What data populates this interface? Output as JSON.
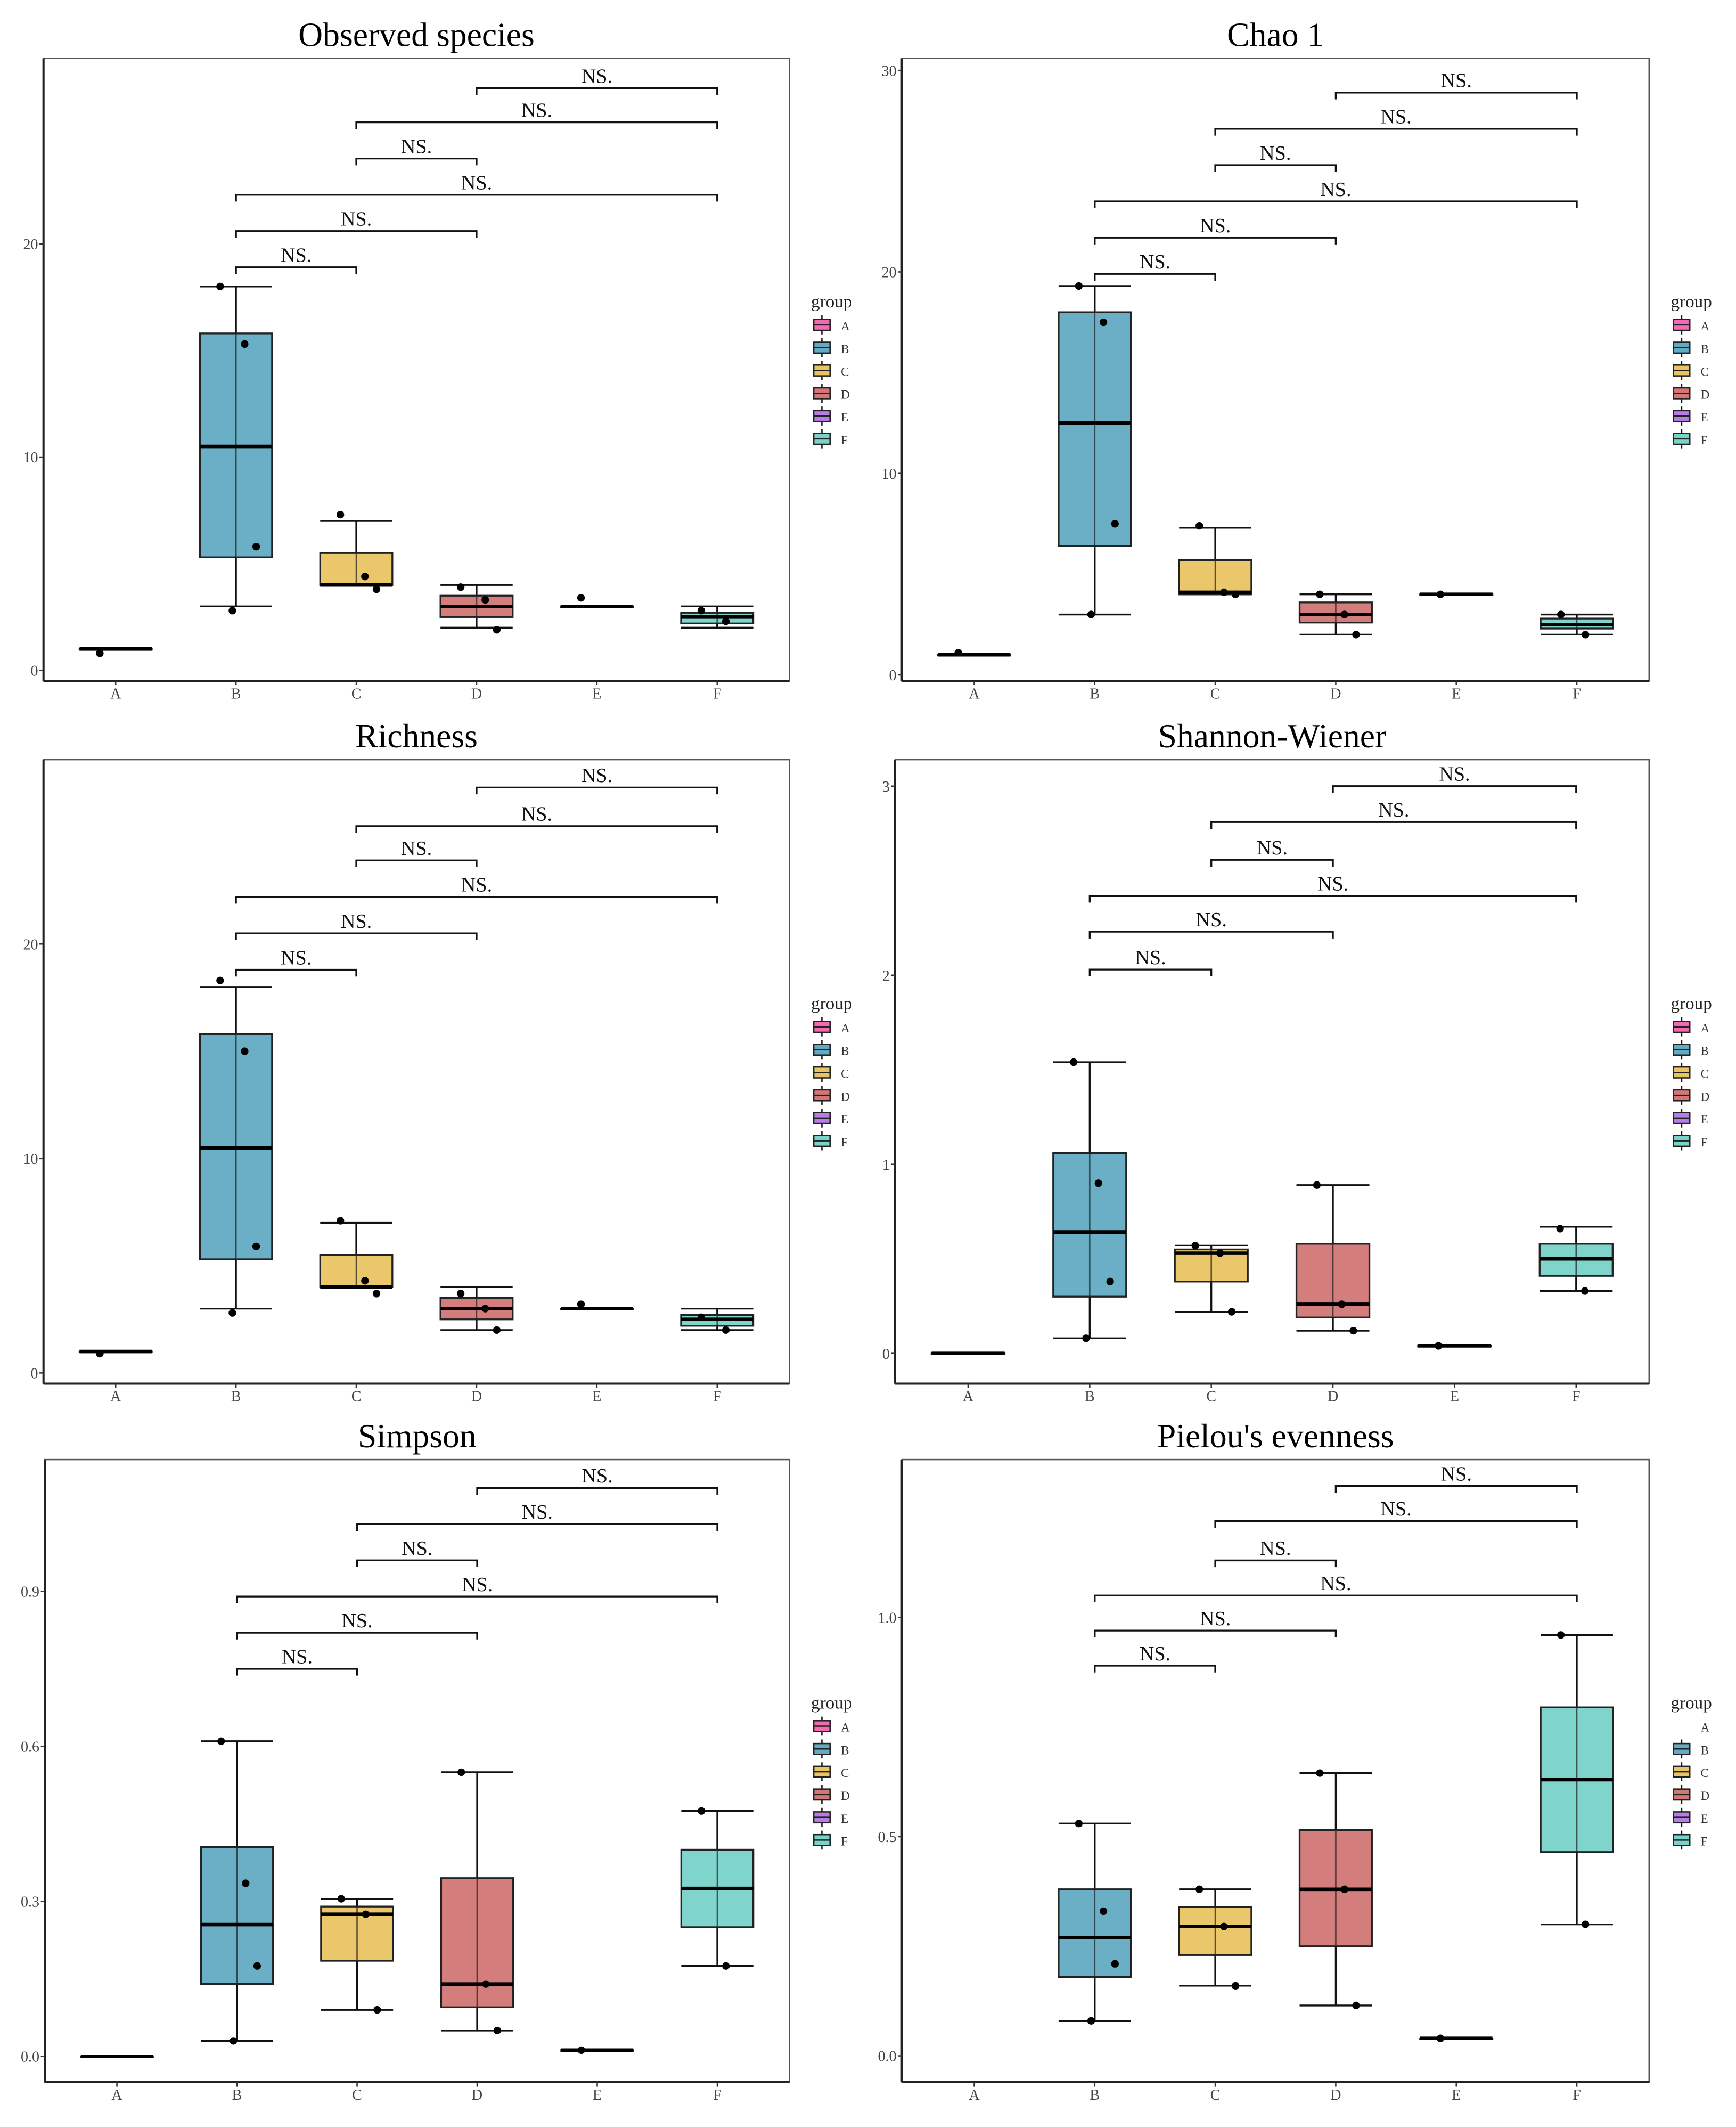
{
  "chart_data": [
    {
      "type": "box",
      "title": "Observed species",
      "ylim": [
        -0.5,
        28.7
      ],
      "yticks": [
        "0",
        "10",
        "20"
      ],
      "ytick_values": [
        0,
        10,
        20
      ],
      "categories": [
        "A",
        "B",
        "C",
        "D",
        "E",
        "F"
      ],
      "groups": [
        {
          "name": "A",
          "lo": 1,
          "q1": 1,
          "med": 1,
          "q3": 1,
          "hi": 1,
          "points": [
            0.8
          ]
        },
        {
          "name": "B",
          "lo": 3,
          "q1": 5.3,
          "med": 10.5,
          "q3": 15.8,
          "hi": 18,
          "points": [
            18,
            15.3,
            5.8,
            2.8
          ]
        },
        {
          "name": "C",
          "lo": 4,
          "q1": 4,
          "med": 4,
          "q3": 5.5,
          "hi": 7,
          "points": [
            7.3,
            4.4,
            3.8
          ]
        },
        {
          "name": "D",
          "lo": 2,
          "q1": 2.5,
          "med": 3,
          "q3": 3.5,
          "hi": 4,
          "points": [
            3.9,
            3.3,
            1.9
          ]
        },
        {
          "name": "E",
          "lo": 3,
          "q1": 3,
          "med": 3,
          "q3": 3,
          "hi": 3,
          "points": [
            3.4
          ]
        },
        {
          "name": "F",
          "lo": 2,
          "q1": 2.2,
          "med": 2.5,
          "q3": 2.7,
          "hi": 3,
          "points": [
            2.8,
            2.3
          ]
        }
      ],
      "brackets": [
        {
          "from": "D",
          "to": "F",
          "y": 27.3,
          "label": "NS."
        },
        {
          "from": "C",
          "to": "F",
          "y": 25.7,
          "label": "NS."
        },
        {
          "from": "C",
          "to": "D",
          "y": 24.0,
          "label": "NS."
        },
        {
          "from": "B",
          "to": "F",
          "y": 22.3,
          "label": "NS."
        },
        {
          "from": "B",
          "to": "D",
          "y": 20.6,
          "label": "NS."
        },
        {
          "from": "B",
          "to": "C",
          "y": 18.9,
          "label": "NS."
        }
      ],
      "legend": {
        "title": "group",
        "placement": "right",
        "keys": [
          "A",
          "B",
          "C",
          "D",
          "E",
          "F"
        ]
      }
    },
    {
      "type": "box",
      "title": "Chao 1",
      "ylim": [
        -0.3,
        30.6
      ],
      "yticks": [
        "0",
        "10",
        "20",
        "30"
      ],
      "ytick_values": [
        0,
        10,
        20,
        30
      ],
      "categories": [
        "A",
        "B",
        "C",
        "D",
        "E",
        "F"
      ],
      "groups": [
        {
          "name": "A",
          "lo": 1,
          "q1": 1,
          "med": 1,
          "q3": 1,
          "hi": 1,
          "points": [
            1.1
          ]
        },
        {
          "name": "B",
          "lo": 3,
          "q1": 6.4,
          "med": 12.5,
          "q3": 18,
          "hi": 19.3,
          "points": [
            19.3,
            17.5,
            7.5,
            3
          ]
        },
        {
          "name": "C",
          "lo": 4,
          "q1": 4,
          "med": 4.1,
          "q3": 5.7,
          "hi": 7.3,
          "points": [
            7.4,
            4.1,
            4
          ]
        },
        {
          "name": "D",
          "lo": 2,
          "q1": 2.6,
          "med": 3,
          "q3": 3.6,
          "hi": 4,
          "points": [
            4,
            3,
            2
          ]
        },
        {
          "name": "E",
          "lo": 4,
          "q1": 4,
          "med": 4,
          "q3": 4,
          "hi": 4,
          "points": [
            4
          ]
        },
        {
          "name": "F",
          "lo": 2,
          "q1": 2.3,
          "med": 2.5,
          "q3": 2.8,
          "hi": 3,
          "points": [
            3,
            2
          ]
        }
      ],
      "brackets": [
        {
          "from": "D",
          "to": "F",
          "y": 28.9,
          "label": "NS."
        },
        {
          "from": "C",
          "to": "F",
          "y": 27.1,
          "label": "NS."
        },
        {
          "from": "C",
          "to": "D",
          "y": 25.3,
          "label": "NS."
        },
        {
          "from": "B",
          "to": "F",
          "y": 23.5,
          "label": "NS."
        },
        {
          "from": "B",
          "to": "D",
          "y": 21.7,
          "label": "NS."
        },
        {
          "from": "B",
          "to": "C",
          "y": 19.9,
          "label": "NS."
        }
      ],
      "legend": {
        "title": "group",
        "placement": "right",
        "keys": [
          "A",
          "B",
          "C",
          "D",
          "E",
          "F"
        ]
      }
    },
    {
      "type": "box",
      "title": "Richness",
      "ylim": [
        -0.5,
        28.6
      ],
      "yticks": [
        "0",
        "10",
        "20"
      ],
      "ytick_values": [
        0,
        10,
        20
      ],
      "categories": [
        "A",
        "B",
        "C",
        "D",
        "E",
        "F"
      ],
      "groups": [
        {
          "name": "A",
          "lo": 1,
          "q1": 1,
          "med": 1,
          "q3": 1,
          "hi": 1,
          "points": [
            0.9
          ]
        },
        {
          "name": "B",
          "lo": 3,
          "q1": 5.3,
          "med": 10.5,
          "q3": 15.8,
          "hi": 18,
          "points": [
            18.3,
            15,
            5.9,
            2.8
          ]
        },
        {
          "name": "C",
          "lo": 4,
          "q1": 4,
          "med": 4,
          "q3": 5.5,
          "hi": 7,
          "points": [
            7.1,
            4.3,
            3.7
          ]
        },
        {
          "name": "D",
          "lo": 2,
          "q1": 2.5,
          "med": 3,
          "q3": 3.5,
          "hi": 4,
          "points": [
            3.7,
            3.0,
            2.0
          ]
        },
        {
          "name": "E",
          "lo": 3,
          "q1": 3,
          "med": 3,
          "q3": 3,
          "hi": 3,
          "points": [
            3.2
          ]
        },
        {
          "name": "F",
          "lo": 2,
          "q1": 2.2,
          "med": 2.5,
          "q3": 2.7,
          "hi": 3,
          "points": [
            2.6,
            2.0
          ]
        }
      ],
      "brackets": [
        {
          "from": "D",
          "to": "F",
          "y": 27.3,
          "label": "NS."
        },
        {
          "from": "C",
          "to": "F",
          "y": 25.5,
          "label": "NS."
        },
        {
          "from": "C",
          "to": "D",
          "y": 23.9,
          "label": "NS."
        },
        {
          "from": "B",
          "to": "F",
          "y": 22.2,
          "label": "NS."
        },
        {
          "from": "B",
          "to": "D",
          "y": 20.5,
          "label": "NS."
        },
        {
          "from": "B",
          "to": "C",
          "y": 18.8,
          "label": "NS."
        }
      ],
      "legend": {
        "title": "group",
        "placement": "right",
        "keys": [
          "A",
          "B",
          "C",
          "D",
          "E",
          "F"
        ]
      }
    },
    {
      "type": "box",
      "title": "Shannon-Wiener",
      "ylim": [
        -0.16,
        3.14
      ],
      "yticks": [
        "0",
        "1",
        "2",
        "3"
      ],
      "ytick_values": [
        0,
        1,
        2,
        3
      ],
      "categories": [
        "A",
        "B",
        "C",
        "D",
        "E",
        "F"
      ],
      "groups": [
        {
          "name": "A",
          "lo": 0,
          "q1": 0,
          "med": 0,
          "q3": 0,
          "hi": 0,
          "points": []
        },
        {
          "name": "B",
          "lo": 0.08,
          "q1": 0.3,
          "med": 0.64,
          "q3": 1.06,
          "hi": 1.54,
          "points": [
            1.54,
            0.9,
            0.38,
            0.08
          ]
        },
        {
          "name": "C",
          "lo": 0.22,
          "q1": 0.38,
          "med": 0.53,
          "q3": 0.55,
          "hi": 0.57,
          "points": [
            0.57,
            0.53,
            0.22
          ]
        },
        {
          "name": "D",
          "lo": 0.12,
          "q1": 0.19,
          "med": 0.26,
          "q3": 0.58,
          "hi": 0.89,
          "points": [
            0.89,
            0.26,
            0.12
          ]
        },
        {
          "name": "E",
          "lo": 0.04,
          "q1": 0.04,
          "med": 0.04,
          "q3": 0.04,
          "hi": 0.04,
          "points": [
            0.04
          ]
        },
        {
          "name": "F",
          "lo": 0.33,
          "q1": 0.41,
          "med": 0.5,
          "q3": 0.58,
          "hi": 0.67,
          "points": [
            0.66,
            0.33
          ]
        }
      ],
      "brackets": [
        {
          "from": "D",
          "to": "F",
          "y": 3.0,
          "label": "NS."
        },
        {
          "from": "C",
          "to": "F",
          "y": 2.81,
          "label": "NS."
        },
        {
          "from": "C",
          "to": "D",
          "y": 2.61,
          "label": "NS."
        },
        {
          "from": "B",
          "to": "F",
          "y": 2.42,
          "label": "NS."
        },
        {
          "from": "B",
          "to": "D",
          "y": 2.23,
          "label": "NS."
        },
        {
          "from": "B",
          "to": "C",
          "y": 2.03,
          "label": "NS."
        }
      ],
      "legend": {
        "title": "group",
        "placement": "right",
        "keys": [
          "A",
          "B",
          "C",
          "D",
          "E",
          "F"
        ]
      }
    },
    {
      "type": "box",
      "title": "Simpson",
      "ylim": [
        -0.05,
        1.155
      ],
      "yticks": [
        "0.0",
        "0.3",
        "0.6",
        "0.9"
      ],
      "ytick_values": [
        0,
        0.3,
        0.6,
        0.9
      ],
      "categories": [
        "A",
        "B",
        "C",
        "D",
        "E",
        "F"
      ],
      "groups": [
        {
          "name": "A",
          "lo": 0,
          "q1": 0,
          "med": 0,
          "q3": 0,
          "hi": 0,
          "points": []
        },
        {
          "name": "B",
          "lo": 0.03,
          "q1": 0.14,
          "med": 0.255,
          "q3": 0.405,
          "hi": 0.61,
          "points": [
            0.61,
            0.335,
            0.175,
            0.03
          ]
        },
        {
          "name": "C",
          "lo": 0.09,
          "q1": 0.185,
          "med": 0.275,
          "q3": 0.29,
          "hi": 0.305,
          "points": [
            0.305,
            0.275,
            0.09
          ]
        },
        {
          "name": "D",
          "lo": 0.05,
          "q1": 0.095,
          "med": 0.14,
          "q3": 0.345,
          "hi": 0.55,
          "points": [
            0.55,
            0.14,
            0.05
          ]
        },
        {
          "name": "E",
          "lo": 0.012,
          "q1": 0.012,
          "med": 0.012,
          "q3": 0.012,
          "hi": 0.012,
          "points": [
            0.012
          ]
        },
        {
          "name": "F",
          "lo": 0.175,
          "q1": 0.25,
          "med": 0.325,
          "q3": 0.4,
          "hi": 0.475,
          "points": [
            0.475,
            0.175
          ]
        }
      ],
      "brackets": [
        {
          "from": "D",
          "to": "F",
          "y": 1.1,
          "label": "NS."
        },
        {
          "from": "C",
          "to": "F",
          "y": 1.03,
          "label": "NS."
        },
        {
          "from": "C",
          "to": "D",
          "y": 0.96,
          "label": "NS."
        },
        {
          "from": "B",
          "to": "F",
          "y": 0.89,
          "label": "NS."
        },
        {
          "from": "B",
          "to": "D",
          "y": 0.82,
          "label": "NS."
        },
        {
          "from": "B",
          "to": "C",
          "y": 0.75,
          "label": "NS."
        }
      ],
      "legend": {
        "title": "group",
        "placement": "right",
        "keys": [
          "A",
          "B",
          "C",
          "D",
          "E",
          "F"
        ]
      }
    },
    {
      "type": "box",
      "title": "Pielou's evenness",
      "ylim": [
        -0.06,
        1.36
      ],
      "yticks": [
        "0.0",
        "0.5",
        "1.0"
      ],
      "ytick_values": [
        0,
        0.5,
        1.0
      ],
      "categories": [
        "A",
        "B",
        "C",
        "D",
        "E",
        "F"
      ],
      "groups": [
        {
          "name": "A",
          "lo": null,
          "q1": null,
          "med": null,
          "q3": null,
          "hi": null,
          "points": []
        },
        {
          "name": "B",
          "lo": 0.08,
          "q1": 0.18,
          "med": 0.27,
          "q3": 0.38,
          "hi": 0.53,
          "points": [
            0.53,
            0.33,
            0.21,
            0.08
          ]
        },
        {
          "name": "C",
          "lo": 0.16,
          "q1": 0.23,
          "med": 0.295,
          "q3": 0.34,
          "hi": 0.38,
          "points": [
            0.38,
            0.295,
            0.16
          ]
        },
        {
          "name": "D",
          "lo": 0.115,
          "q1": 0.25,
          "med": 0.38,
          "q3": 0.515,
          "hi": 0.645,
          "points": [
            0.645,
            0.38,
            0.115
          ]
        },
        {
          "name": "E",
          "lo": 0.04,
          "q1": 0.04,
          "med": 0.04,
          "q3": 0.04,
          "hi": 0.04,
          "points": [
            0.04
          ]
        },
        {
          "name": "F",
          "lo": 0.3,
          "q1": 0.465,
          "med": 0.63,
          "q3": 0.795,
          "hi": 0.96,
          "points": [
            0.96,
            0.3
          ]
        }
      ],
      "brackets": [
        {
          "from": "D",
          "to": "F",
          "y": 1.3,
          "label": "NS."
        },
        {
          "from": "C",
          "to": "F",
          "y": 1.22,
          "label": "NS."
        },
        {
          "from": "C",
          "to": "D",
          "y": 1.13,
          "label": "NS."
        },
        {
          "from": "B",
          "to": "F",
          "y": 1.05,
          "label": "NS."
        },
        {
          "from": "B",
          "to": "D",
          "y": 0.97,
          "label": "NS."
        },
        {
          "from": "B",
          "to": "C",
          "y": 0.89,
          "label": "NS."
        }
      ],
      "legend": {
        "title": "group",
        "placement": "right",
        "keys": [
          "A",
          "B",
          "C",
          "D",
          "E",
          "F"
        ]
      }
    }
  ],
  "colors": {
    "A": "#f468b4",
    "B": "#62abc3",
    "C": "#e8c462",
    "D": "#d27676",
    "E": "#b87ce6",
    "F": "#78d3c9"
  }
}
